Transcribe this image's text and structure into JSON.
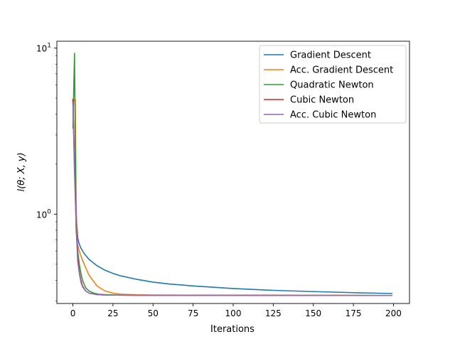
{
  "chart_data": {
    "type": "line",
    "title": "",
    "xlabel": "Iterations",
    "ylabel": "l(θ; X, y)",
    "xlim": [
      -10,
      210
    ],
    "ylim": [
      0.29,
      11
    ],
    "yscale": "log",
    "grid": false,
    "legend_position": "top-right",
    "x_ticks": [
      0,
      25,
      50,
      75,
      100,
      125,
      150,
      175,
      200
    ],
    "x_tick_labels": [
      "0",
      "25",
      "50",
      "75",
      "100",
      "125",
      "150",
      "175",
      "200"
    ],
    "y_ticks": [
      1,
      10
    ],
    "y_tick_labels": [
      "10^0",
      "10^1"
    ],
    "series": [
      {
        "name": "Gradient Descent",
        "color": "#1f77b4",
        "points": [
          [
            0,
            4.9
          ],
          [
            1,
            2.0
          ],
          [
            2,
            1.0
          ],
          [
            3,
            0.72
          ],
          [
            4,
            0.66
          ],
          [
            5,
            0.625
          ],
          [
            7,
            0.58
          ],
          [
            10,
            0.535
          ],
          [
            15,
            0.49
          ],
          [
            20,
            0.46
          ],
          [
            25,
            0.44
          ],
          [
            30,
            0.425
          ],
          [
            40,
            0.405
          ],
          [
            50,
            0.39
          ],
          [
            60,
            0.38
          ],
          [
            75,
            0.37
          ],
          [
            100,
            0.357
          ],
          [
            125,
            0.348
          ],
          [
            150,
            0.342
          ],
          [
            175,
            0.337
          ],
          [
            199,
            0.333
          ]
        ]
      },
      {
        "name": "Acc. Gradient Descent",
        "color": "#ff7f0e",
        "points": [
          [
            0,
            4.9
          ],
          [
            1,
            4.85
          ],
          [
            1.5,
            4.9
          ],
          [
            2,
            1.2
          ],
          [
            2.5,
            0.72
          ],
          [
            3,
            0.65
          ],
          [
            4,
            0.6
          ],
          [
            5,
            0.56
          ],
          [
            7,
            0.5
          ],
          [
            10,
            0.43
          ],
          [
            15,
            0.37
          ],
          [
            20,
            0.345
          ],
          [
            25,
            0.335
          ],
          [
            30,
            0.33
          ],
          [
            40,
            0.327
          ],
          [
            50,
            0.326
          ],
          [
            75,
            0.325
          ],
          [
            100,
            0.325
          ],
          [
            150,
            0.324
          ],
          [
            199,
            0.324
          ]
        ]
      },
      {
        "name": "Quadratic Newton",
        "color": "#2ca02c",
        "points": [
          [
            0,
            3.3
          ],
          [
            1,
            9.3
          ],
          [
            2,
            0.8
          ],
          [
            3,
            0.6
          ],
          [
            4,
            0.5
          ],
          [
            5,
            0.44
          ],
          [
            6,
            0.4
          ],
          [
            8,
            0.36
          ],
          [
            10,
            0.345
          ],
          [
            13,
            0.335
          ],
          [
            16,
            0.33
          ],
          [
            20,
            0.328
          ],
          [
            30,
            0.326
          ],
          [
            50,
            0.325
          ],
          [
            100,
            0.325
          ],
          [
            199,
            0.324
          ]
        ]
      },
      {
        "name": "Cubic Newton",
        "color": "#d62728",
        "points": [
          [
            0,
            4.9
          ],
          [
            1,
            2.0
          ],
          [
            2,
            0.9
          ],
          [
            3,
            0.55
          ],
          [
            4,
            0.45
          ],
          [
            5,
            0.4
          ],
          [
            6,
            0.37
          ],
          [
            8,
            0.345
          ],
          [
            10,
            0.335
          ],
          [
            15,
            0.328
          ],
          [
            20,
            0.326
          ],
          [
            40,
            0.325
          ],
          [
            100,
            0.325
          ],
          [
            199,
            0.324
          ]
        ]
      },
      {
        "name": "Acc. Cubic Newton",
        "color": "#9467bd",
        "points": [
          [
            0,
            4.7
          ],
          [
            1,
            1.8
          ],
          [
            2,
            0.85
          ],
          [
            3,
            0.52
          ],
          [
            4,
            0.44
          ],
          [
            5,
            0.39
          ],
          [
            6,
            0.365
          ],
          [
            8,
            0.345
          ],
          [
            10,
            0.335
          ],
          [
            15,
            0.328
          ],
          [
            20,
            0.326
          ],
          [
            40,
            0.325
          ],
          [
            100,
            0.325
          ],
          [
            199,
            0.324
          ]
        ]
      }
    ]
  }
}
